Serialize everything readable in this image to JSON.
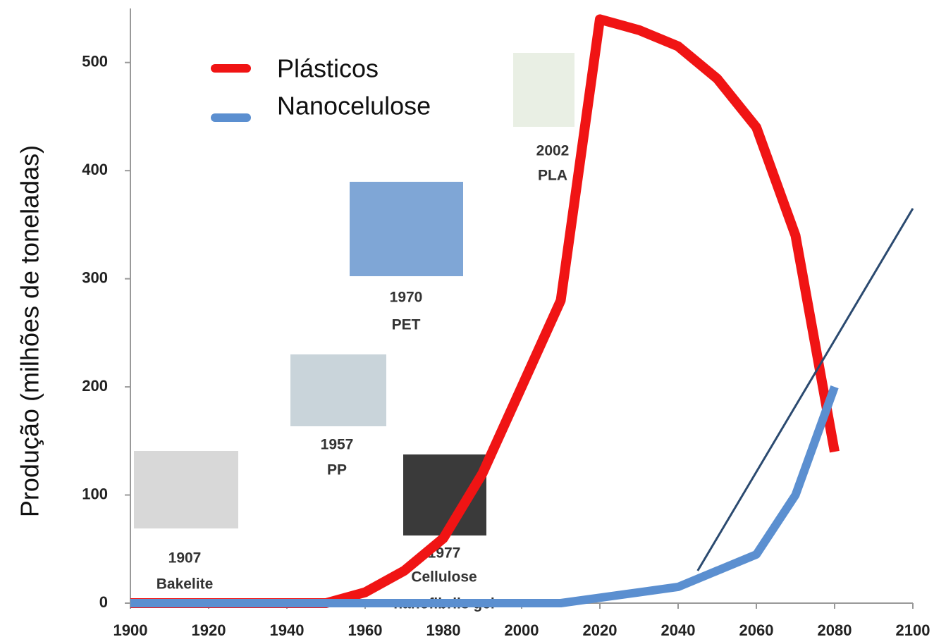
{
  "chart_data": {
    "type": "line",
    "ylabel": "Produção (milhões de toneladas)",
    "x": [
      1900,
      1910,
      1920,
      1930,
      1940,
      1950,
      1960,
      1970,
      1980,
      1990,
      2000,
      2010,
      2020,
      2030,
      2040,
      2050,
      2060,
      2070,
      2080
    ],
    "series": [
      {
        "name": "Plásticos",
        "color": "#f01414",
        "values": [
          0,
          0,
          0,
          0,
          0,
          0,
          10,
          30,
          60,
          120,
          200,
          280,
          540,
          530,
          515,
          485,
          440,
          340,
          140
        ]
      },
      {
        "name": "Nanocelulose",
        "color": "#5b8fd0",
        "values": [
          0,
          0,
          0,
          0,
          0,
          0,
          0,
          0,
          0,
          0,
          0,
          0,
          5,
          10,
          15,
          30,
          45,
          100,
          200
        ]
      }
    ],
    "trend_line": {
      "x": [
        2045,
        2100
      ],
      "values": [
        30,
        365
      ],
      "color": "#2b4a70"
    },
    "xlim": [
      1900,
      2100
    ],
    "ylim": [
      0,
      550
    ],
    "xticks": [
      1900,
      1920,
      1940,
      1960,
      1980,
      2000,
      2020,
      2040,
      2060,
      2080,
      2100
    ],
    "yticks": [
      0,
      100,
      200,
      300,
      400,
      500
    ],
    "legend": "upper left",
    "annotations": [
      {
        "lines": [
          "1907",
          "Bakelite"
        ]
      },
      {
        "lines": [
          "1957",
          "PP"
        ]
      },
      {
        "lines": [
          "1970",
          "PET"
        ]
      },
      {
        "lines": [
          "1977",
          "Cellulose",
          "nanofibrils gel"
        ]
      },
      {
        "lines": [
          "2002",
          "PLA"
        ]
      }
    ]
  }
}
